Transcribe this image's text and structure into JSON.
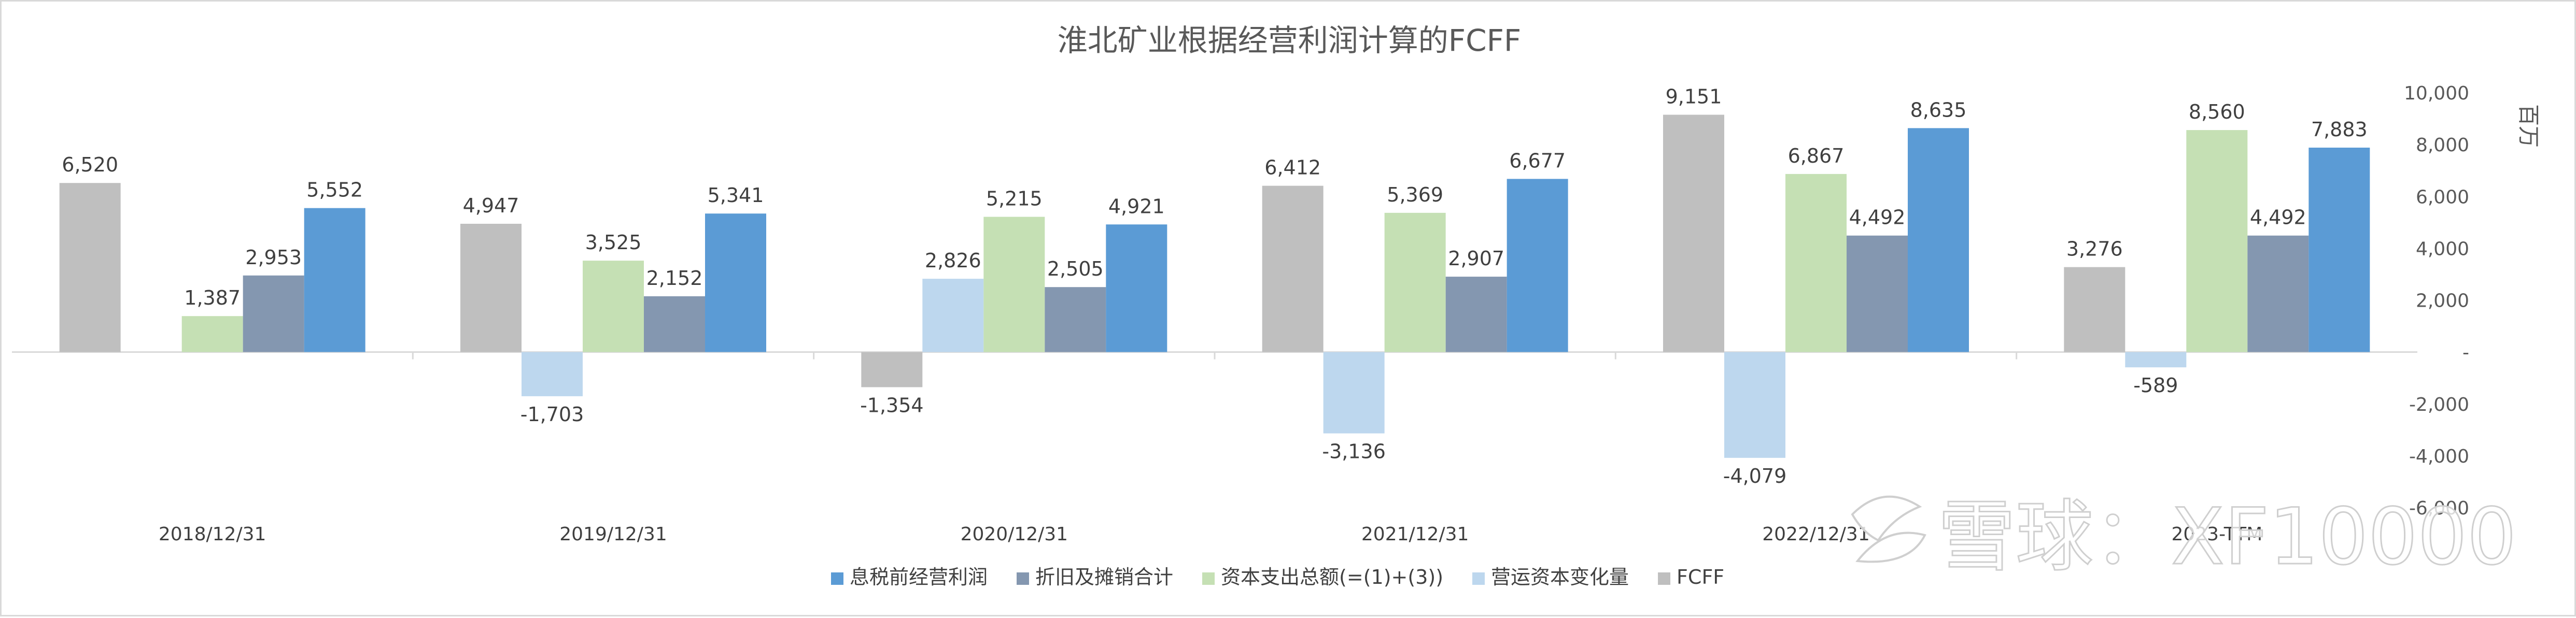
{
  "chart_data": {
    "type": "bar",
    "title": "淮北矿业根据经营利润计算的FCFF",
    "categories": [
      "2018/12/31",
      "2019/12/31",
      "2020/12/31",
      "2021/12/31",
      "2022/12/31",
      "2023-TTM"
    ],
    "series": [
      {
        "name": "FCFF",
        "color": "#bfbfbf",
        "values": [
          6520,
          4947,
          -1354,
          6412,
          9151,
          3276
        ]
      },
      {
        "name": "营运资本变化量",
        "color": "#bdd7ee",
        "values": [
          null,
          -1703,
          2826,
          -3136,
          -4079,
          -589
        ]
      },
      {
        "name": "资本支出总额(=(1)+(3))",
        "color": "#c5e0b4",
        "values": [
          1387,
          3525,
          5215,
          5369,
          6867,
          8560
        ]
      },
      {
        "name": "折旧及摊销合计",
        "color": "#8497b0",
        "values": [
          2953,
          2152,
          2505,
          2907,
          4492,
          4492
        ]
      },
      {
        "name": "息税前经营利润",
        "color": "#5b9bd5",
        "values": [
          5552,
          5341,
          4921,
          6677,
          8635,
          7883
        ]
      }
    ],
    "data_labels": [
      [
        "6,520",
        "",
        "1,387",
        "2,953",
        "5,552"
      ],
      [
        "4,947",
        "-1,703",
        "3,525",
        "2,152",
        "5,341"
      ],
      [
        "-1,354",
        "2,826",
        "5,215",
        "2,505",
        "4,921"
      ],
      [
        "6,412",
        "-3,136",
        "5,369",
        "2,907",
        "6,677"
      ],
      [
        "9,151",
        "-4,079",
        "6,867",
        "4,492",
        "8,635"
      ],
      [
        "3,276",
        "-589",
        "8,560",
        "4,492",
        "7,883"
      ]
    ],
    "legend_order": [
      4,
      3,
      2,
      1,
      0
    ],
    "legend_position": "bottom",
    "y_axis": {
      "position": "right",
      "label": "百万",
      "ylim": [
        -6000,
        10000
      ],
      "ticks": [
        10000,
        8000,
        6000,
        4000,
        2000,
        0,
        -2000,
        -4000,
        -6000
      ],
      "tick_labels": [
        "10,000",
        "8,000",
        "6,000",
        "4,000",
        "2,000",
        "-",
        "-2,000",
        "-4,000",
        "-6,000"
      ]
    },
    "grid": false
  },
  "watermark": {
    "text": "雪球：XF10000",
    "icon": "snowball-logo-icon"
  }
}
